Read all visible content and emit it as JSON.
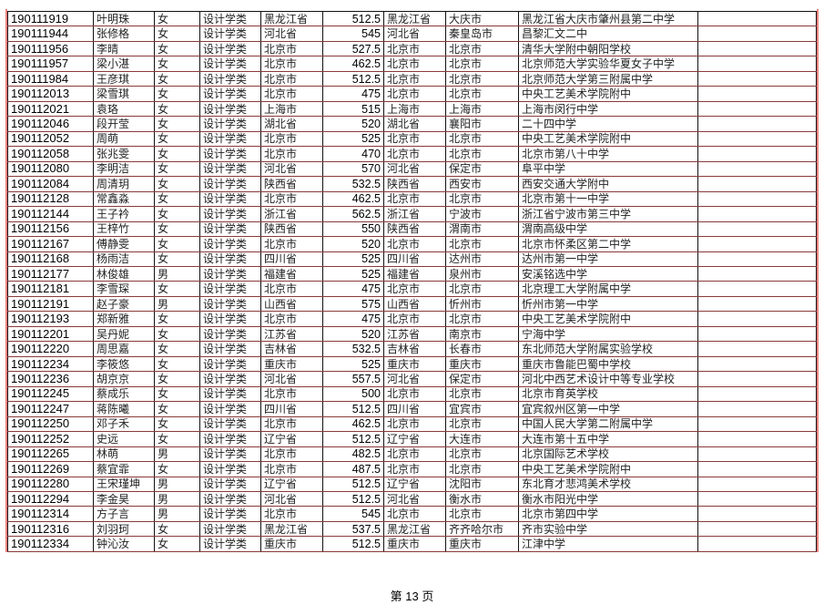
{
  "rows": [
    [
      "190111919",
      "叶明珠",
      "女",
      "设计学类",
      "黑龙江省",
      "512.5",
      "黑龙江省",
      "大庆市",
      "黑龙江省大庆市肇州县第二中学"
    ],
    [
      "190111944",
      "张修格",
      "女",
      "设计学类",
      "河北省",
      "545",
      "河北省",
      "秦皇岛市",
      "昌黎汇文二中"
    ],
    [
      "190111956",
      "李晴",
      "女",
      "设计学类",
      "北京市",
      "527.5",
      "北京市",
      "北京市",
      "清华大学附中朝阳学校"
    ],
    [
      "190111957",
      "梁小湛",
      "女",
      "设计学类",
      "北京市",
      "462.5",
      "北京市",
      "北京市",
      "北京师范大学实验华夏女子中学"
    ],
    [
      "190111984",
      "王彦琪",
      "女",
      "设计学类",
      "北京市",
      "512.5",
      "北京市",
      "北京市",
      "北京师范大学第三附属中学"
    ],
    [
      "190112013",
      "梁雪琪",
      "女",
      "设计学类",
      "北京市",
      "475",
      "北京市",
      "北京市",
      "中央工艺美术学院附中"
    ],
    [
      "190112021",
      "袁珞",
      "女",
      "设计学类",
      "上海市",
      "515",
      "上海市",
      "上海市",
      "上海市闵行中学"
    ],
    [
      "190112046",
      "段开莹",
      "女",
      "设计学类",
      "湖北省",
      "520",
      "湖北省",
      "襄阳市",
      "二十四中学"
    ],
    [
      "190112052",
      "周萌",
      "女",
      "设计学类",
      "北京市",
      "525",
      "北京市",
      "北京市",
      "中央工艺美术学院附中"
    ],
    [
      "190112058",
      "张兆雯",
      "女",
      "设计学类",
      "北京市",
      "470",
      "北京市",
      "北京市",
      "北京市第八十中学"
    ],
    [
      "190112080",
      "李明洁",
      "女",
      "设计学类",
      "河北省",
      "570",
      "河北省",
      "保定市",
      "阜平中学"
    ],
    [
      "190112084",
      "周清玥",
      "女",
      "设计学类",
      "陕西省",
      "532.5",
      "陕西省",
      "西安市",
      "西安交通大学附中"
    ],
    [
      "190112128",
      "常鑫淼",
      "女",
      "设计学类",
      "北京市",
      "462.5",
      "北京市",
      "北京市",
      "北京市第十一中学"
    ],
    [
      "190112144",
      "王子衿",
      "女",
      "设计学类",
      "浙江省",
      "562.5",
      "浙江省",
      "宁波市",
      "浙江省宁波市第三中学"
    ],
    [
      "190112156",
      "王梓竹",
      "女",
      "设计学类",
      "陕西省",
      "550",
      "陕西省",
      "渭南市",
      "渭南高级中学"
    ],
    [
      "190112167",
      "傅静雯",
      "女",
      "设计学类",
      "北京市",
      "520",
      "北京市",
      "北京市",
      "北京市怀柔区第二中学"
    ],
    [
      "190112168",
      "杨雨洁",
      "女",
      "设计学类",
      "四川省",
      "525",
      "四川省",
      "达州市",
      "达州市第一中学"
    ],
    [
      "190112177",
      "林俊雄",
      "男",
      "设计学类",
      "福建省",
      "525",
      "福建省",
      "泉州市",
      "安溪铭选中学"
    ],
    [
      "190112181",
      "李雪琛",
      "女",
      "设计学类",
      "北京市",
      "475",
      "北京市",
      "北京市",
      "北京理工大学附属中学"
    ],
    [
      "190112191",
      "赵子豪",
      "男",
      "设计学类",
      "山西省",
      "575",
      "山西省",
      "忻州市",
      "忻州市第一中学"
    ],
    [
      "190112193",
      "郑新雅",
      "女",
      "设计学类",
      "北京市",
      "475",
      "北京市",
      "北京市",
      "中央工艺美术学院附中"
    ],
    [
      "190112201",
      "吴丹妮",
      "女",
      "设计学类",
      "江苏省",
      "520",
      "江苏省",
      "南京市",
      "宁海中学"
    ],
    [
      "190112220",
      "周思嘉",
      "女",
      "设计学类",
      "吉林省",
      "532.5",
      "吉林省",
      "长春市",
      "东北师范大学附属实验学校"
    ],
    [
      "190112234",
      "李筱悠",
      "女",
      "设计学类",
      "重庆市",
      "525",
      "重庆市",
      "重庆市",
      "重庆市鲁能巴蜀中学校"
    ],
    [
      "190112236",
      "胡京京",
      "女",
      "设计学类",
      "河北省",
      "557.5",
      "河北省",
      "保定市",
      "河北中西艺术设计中等专业学校"
    ],
    [
      "190112245",
      "蔡成乐",
      "女",
      "设计学类",
      "北京市",
      "500",
      "北京市",
      "北京市",
      "北京市育英学校"
    ],
    [
      "190112247",
      "蒋陈曦",
      "女",
      "设计学类",
      "四川省",
      "512.5",
      "四川省",
      "宜宾市",
      "宜宾叙州区第一中学"
    ],
    [
      "190112250",
      "邓子禾",
      "女",
      "设计学类",
      "北京市",
      "462.5",
      "北京市",
      "北京市",
      "中国人民大学第二附属中学"
    ],
    [
      "190112252",
      "史远",
      "女",
      "设计学类",
      "辽宁省",
      "512.5",
      "辽宁省",
      "大连市",
      "大连市第十五中学"
    ],
    [
      "190112265",
      "林萌",
      "男",
      "设计学类",
      "北京市",
      "482.5",
      "北京市",
      "北京市",
      "北京国际艺术学校"
    ],
    [
      "190112269",
      "蔡宜霏",
      "女",
      "设计学类",
      "北京市",
      "487.5",
      "北京市",
      "北京市",
      "中央工艺美术学院附中"
    ],
    [
      "190112280",
      "王宋瑾坤",
      "男",
      "设计学类",
      "辽宁省",
      "512.5",
      "辽宁省",
      "沈阳市",
      "东北育才悲鸿美术学校"
    ],
    [
      "190112294",
      "李金昊",
      "男",
      "设计学类",
      "河北省",
      "512.5",
      "河北省",
      "衡水市",
      "衡水市阳光中学"
    ],
    [
      "190112314",
      "方子言",
      "男",
      "设计学类",
      "北京市",
      "545",
      "北京市",
      "北京市",
      "北京市第四中学"
    ],
    [
      "190112316",
      "刘羽珂",
      "女",
      "设计学类",
      "黑龙江省",
      "537.5",
      "黑龙江省",
      "齐齐哈尔市",
      "齐市实验中学"
    ],
    [
      "190112334",
      "钟沁汝",
      "女",
      "设计学类",
      "重庆市",
      "512.5",
      "重庆市",
      "重庆市",
      "江津中学"
    ]
  ],
  "footer": {
    "page_label": "第 13 页"
  }
}
